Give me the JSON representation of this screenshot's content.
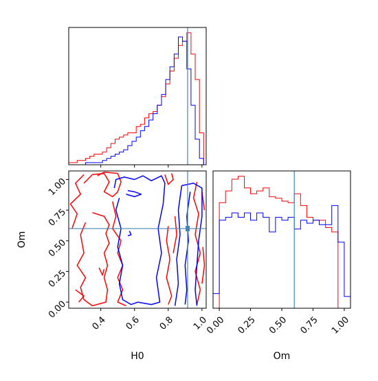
{
  "colors": {
    "series_a": "#ff0000",
    "series_b": "#0000ff",
    "truth": "#4682b4",
    "axes": "#000000"
  },
  "chart_data": [
    {
      "type": "histogram",
      "panel": "top-left",
      "parameter": "H0",
      "x_range": [
        0.21,
        1.025
      ],
      "show_tick_labels": false,
      "x_ticks": [
        0.4,
        0.6,
        0.8,
        1.0
      ],
      "truth_x": 0.915,
      "bin_edges": [
        0.21,
        0.235,
        0.26,
        0.285,
        0.31,
        0.335,
        0.36,
        0.385,
        0.41,
        0.435,
        0.46,
        0.485,
        0.51,
        0.535,
        0.56,
        0.585,
        0.61,
        0.635,
        0.66,
        0.685,
        0.71,
        0.735,
        0.76,
        0.785,
        0.81,
        0.835,
        0.86,
        0.885,
        0.91,
        0.935,
        0.96,
        0.985,
        1.01,
        1.025
      ],
      "series": [
        {
          "color": "red",
          "counts": [
            1,
            1,
            2,
            2,
            3,
            4,
            5,
            5,
            6,
            8,
            10,
            12,
            13,
            14,
            15,
            15,
            18,
            19,
            22,
            24,
            25,
            28,
            32,
            38,
            44,
            50,
            56,
            58,
            62,
            52,
            40,
            15,
            0
          ]
        },
        {
          "color": "blue",
          "counts": [
            0,
            0,
            0,
            0,
            1,
            1,
            1,
            1,
            2,
            3,
            4,
            5,
            6,
            7,
            9,
            11,
            13,
            16,
            18,
            21,
            24,
            28,
            33,
            40,
            46,
            52,
            60,
            58,
            45,
            28,
            12,
            3,
            0
          ]
        }
      ]
    },
    {
      "type": "contour",
      "panel": "bottom-left",
      "x_parameter": "H0",
      "y_parameter": "Om",
      "xlabel": "H0",
      "ylabel": "Om",
      "x_range": [
        0.21,
        1.025
      ],
      "y_range": [
        -0.05,
        1.07
      ],
      "x_ticks": [
        "0.4",
        "0.6",
        "0.8",
        "1.0"
      ],
      "y_ticks": [
        "0.00",
        "0.25",
        "0.50",
        "0.75",
        "1.00"
      ],
      "truth_x": 0.915,
      "truth_y": 0.6,
      "series": [
        {
          "color": "red",
          "levels": [
            [
              [
                0.3,
                0.97
              ],
              [
                0.35,
                1.04
              ],
              [
                0.42,
                1.05
              ],
              [
                0.45,
                0.98
              ],
              [
                0.42,
                0.9
              ],
              [
                0.47,
                0.86
              ],
              [
                0.5,
                0.9
              ],
              [
                0.52,
                0.98
              ],
              [
                0.5,
                1.05
              ],
              [
                0.42,
                1.06
              ],
              [
                0.38,
                1.03
              ]
            ],
            [
              [
                0.35,
                0.73
              ],
              [
                0.42,
                0.7
              ],
              [
                0.45,
                0.63
              ],
              [
                0.43,
                0.56
              ],
              [
                0.45,
                0.48
              ],
              [
                0.42,
                0.4
              ],
              [
                0.44,
                0.3
              ],
              [
                0.42,
                0.2
              ],
              [
                0.44,
                0.1
              ],
              [
                0.43,
                0.0
              ],
              [
                0.35,
                -0.03
              ],
              [
                0.3,
                0.02
              ],
              [
                0.28,
                0.12
              ],
              [
                0.31,
                0.2
              ],
              [
                0.26,
                0.3
              ],
              [
                0.3,
                0.4
              ],
              [
                0.28,
                0.55
              ],
              [
                0.31,
                0.65
              ]
            ],
            [
              [
                0.23,
                0.6
              ],
              [
                0.26,
                0.72
              ],
              [
                0.22,
                0.8
              ],
              [
                0.28,
                0.88
              ],
              [
                0.25,
                0.97
              ],
              [
                0.3,
                1.04
              ]
            ],
            [
              [
                0.47,
                0.82
              ],
              [
                0.49,
                0.7
              ],
              [
                0.47,
                0.6
              ],
              [
                0.52,
                0.5
              ],
              [
                0.5,
                0.4
              ],
              [
                0.53,
                0.3
              ],
              [
                0.5,
                0.2
              ],
              [
                0.53,
                0.1
              ],
              [
                0.5,
                0.0
              ],
              [
                0.55,
                -0.03
              ]
            ],
            [
              [
                0.27,
                0.0
              ],
              [
                0.3,
                0.05
              ],
              [
                0.25,
                0.1
              ]
            ],
            [
              [
                0.39,
                0.28
              ],
              [
                0.41,
                0.22
              ],
              [
                0.42,
                0.27
              ]
            ],
            [
              [
                0.78,
                1.04
              ],
              [
                0.8,
                0.96
              ],
              [
                0.83,
                1.0
              ],
              [
                0.82,
                1.05
              ]
            ],
            [
              [
                0.8,
                0.62
              ],
              [
                0.79,
                0.5
              ],
              [
                0.81,
                0.35
              ],
              [
                0.79,
                0.2
              ],
              [
                0.82,
                0.05
              ],
              [
                0.8,
                -0.02
              ]
            ],
            [
              [
                0.84,
                0.7
              ],
              [
                0.85,
                0.55
              ],
              [
                0.83,
                0.4
              ]
            ],
            [
              [
                0.97,
                0.98
              ],
              [
                0.95,
                0.85
              ],
              [
                0.98,
                0.72
              ],
              [
                0.96,
                0.55
              ],
              [
                0.99,
                0.4
              ],
              [
                0.96,
                0.25
              ],
              [
                0.99,
                0.1
              ],
              [
                0.97,
                -0.02
              ]
            ],
            [
              [
                1.0,
                0.9
              ],
              [
                1.015,
                0.75
              ]
            ],
            [
              [
                1.005,
                0.45
              ],
              [
                1.015,
                0.3
              ],
              [
                1.0,
                0.15
              ]
            ]
          ]
        },
        {
          "color": "blue",
          "levels": [
            [
              [
                0.48,
                0.93
              ],
              [
                0.49,
                1.0
              ],
              [
                0.54,
                1.02
              ],
              [
                0.6,
                1.0
              ],
              [
                0.65,
                1.03
              ],
              [
                0.7,
                0.99
              ],
              [
                0.76,
                1.03
              ],
              [
                0.78,
                0.97
              ],
              [
                0.77,
                0.8
              ],
              [
                0.74,
                0.6
              ],
              [
                0.76,
                0.4
              ],
              [
                0.73,
                0.2
              ],
              [
                0.75,
                0.0
              ],
              [
                0.7,
                -0.02
              ],
              [
                0.62,
                0.0
              ],
              [
                0.58,
                -0.02
              ],
              [
                0.53,
                0.02
              ],
              [
                0.51,
                0.15
              ],
              [
                0.53,
                0.3
              ],
              [
                0.5,
                0.45
              ],
              [
                0.52,
                0.6
              ],
              [
                0.49,
                0.75
              ],
              [
                0.51,
                0.85
              ]
            ],
            [
              [
                0.55,
                0.88
              ],
              [
                0.6,
                0.86
              ],
              [
                0.64,
                0.88
              ],
              [
                0.6,
                0.9
              ],
              [
                0.56,
                0.91
              ]
            ],
            [
              [
                0.57,
                0.58
              ],
              [
                0.58,
                0.55
              ],
              [
                0.56,
                0.54
              ]
            ],
            [
              [
                0.88,
                0.95
              ],
              [
                0.95,
                0.97
              ],
              [
                1.0,
                0.93
              ],
              [
                1.0,
                0.7
              ],
              [
                0.98,
                0.5
              ],
              [
                0.97,
                0.3
              ],
              [
                0.96,
                0.1
              ],
              [
                0.97,
                -0.03
              ]
            ],
            [
              [
                0.88,
                0.95
              ],
              [
                0.86,
                0.75
              ],
              [
                0.87,
                0.55
              ],
              [
                0.85,
                0.35
              ],
              [
                0.86,
                0.15
              ],
              [
                0.84,
                -0.03
              ]
            ],
            [
              [
                0.93,
                0.9
              ],
              [
                0.91,
                0.7
              ],
              [
                0.92,
                0.5
              ],
              [
                0.9,
                0.3
              ],
              [
                0.91,
                0.1
              ],
              [
                0.9,
                -0.02
              ]
            ]
          ]
        }
      ]
    },
    {
      "type": "histogram",
      "panel": "bottom-right",
      "parameter": "Om",
      "xlabel": "Om",
      "x_range": [
        -0.05,
        1.05
      ],
      "x_ticks": [
        "0.00",
        "0.25",
        "0.50",
        "0.75",
        "1.00"
      ],
      "truth_x": 0.6,
      "bin_edges": [
        -0.05,
        0.0,
        0.05,
        0.1,
        0.15,
        0.2,
        0.25,
        0.3,
        0.35,
        0.4,
        0.45,
        0.5,
        0.55,
        0.6,
        0.65,
        0.7,
        0.75,
        0.8,
        0.85,
        0.9,
        0.95,
        1.0,
        1.05
      ],
      "series": [
        {
          "color": "red",
          "counts": [
            0,
            72,
            80,
            88,
            90,
            82,
            78,
            80,
            82,
            76,
            75,
            73,
            72,
            78,
            70,
            62,
            60,
            60,
            55,
            52,
            0,
            0
          ]
        },
        {
          "color": "blue",
          "counts": [
            10,
            60,
            62,
            65,
            62,
            65,
            60,
            65,
            62,
            52,
            62,
            60,
            62,
            54,
            60,
            58,
            60,
            57,
            57,
            70,
            45,
            8
          ]
        }
      ]
    }
  ]
}
